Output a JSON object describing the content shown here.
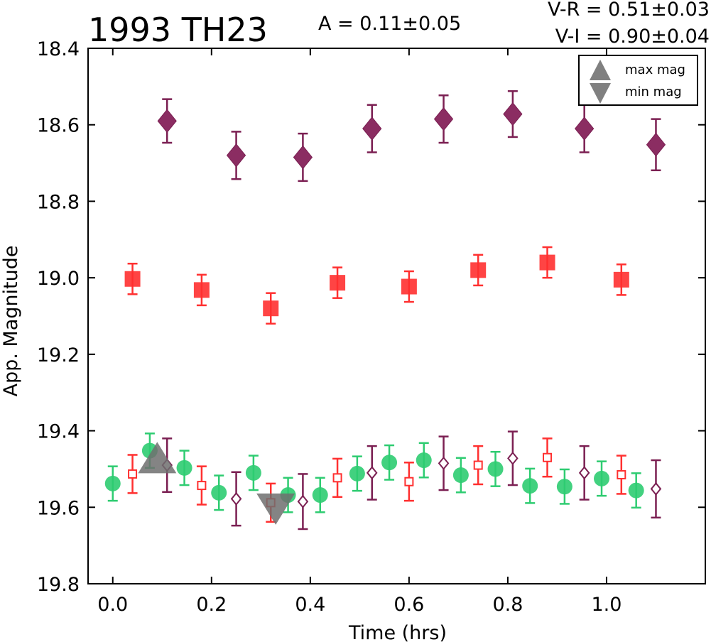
{
  "title": "1993 TH23",
  "annotations": {
    "amplitude": "A  = 0.11±0.05",
    "v_r": "V-R = 0.51±0.03",
    "v_i": "V-I  = 0.90±0.04"
  },
  "colors": {
    "green": "#2ecc71",
    "red": "#ff3030",
    "purple": "#7b1f52",
    "purple_fill": "#8b2d62",
    "marker_gray": "#6e6e6e"
  },
  "chart_data": {
    "type": "scatter",
    "xlabel": "Time (hrs)",
    "ylabel": "App. Magnitude",
    "xlim": [
      -0.05,
      1.2
    ],
    "ylim": [
      19.8,
      18.4
    ],
    "y_inverted": true,
    "grid": false,
    "legend_position": "top-right",
    "x_ticks": [
      "0.0",
      "0.2",
      "0.4",
      "0.6",
      "0.8",
      "1.0"
    ],
    "x_tick_values": [
      0.0,
      0.2,
      0.4,
      0.6,
      0.8,
      1.0
    ],
    "y_ticks": [
      "18.4",
      "18.6",
      "18.8",
      "19.0",
      "19.2",
      "19.4",
      "19.6",
      "19.8"
    ],
    "y_tick_values": [
      18.4,
      18.6,
      18.8,
      19.0,
      19.2,
      19.4,
      19.6,
      19.8
    ],
    "legend": [
      {
        "label": "max mag",
        "marker": "triangle-up"
      },
      {
        "label": "min mag",
        "marker": "triangle-down"
      }
    ],
    "series": [
      {
        "marker": "diamond-filled",
        "color": "purple",
        "x": [
          0.11,
          0.25,
          0.385,
          0.525,
          0.67,
          0.81,
          0.955,
          1.1
        ],
        "y": [
          18.59,
          18.68,
          18.685,
          18.61,
          18.585,
          18.572,
          18.61,
          18.652
        ],
        "err": [
          0.057,
          0.062,
          0.062,
          0.062,
          0.062,
          0.06,
          0.062,
          0.067
        ]
      },
      {
        "marker": "square-filled",
        "color": "red",
        "x": [
          0.04,
          0.18,
          0.32,
          0.455,
          0.6,
          0.74,
          0.88,
          1.03
        ],
        "y": [
          19.003,
          19.032,
          19.08,
          19.013,
          19.023,
          18.98,
          18.96,
          19.005
        ],
        "err": [
          0.04,
          0.04,
          0.04,
          0.04,
          0.04,
          0.04,
          0.04,
          0.04
        ]
      },
      {
        "marker": "circle",
        "color": "green",
        "x": [
          0.0,
          0.075,
          0.145,
          0.215,
          0.285,
          0.355,
          0.42,
          0.495,
          0.56,
          0.63,
          0.705,
          0.775,
          0.845,
          0.915,
          0.99,
          1.06
        ],
        "y": [
          19.538,
          19.452,
          19.497,
          19.562,
          19.51,
          19.568,
          19.568,
          19.512,
          19.483,
          19.477,
          19.516,
          19.5,
          19.544,
          19.546,
          19.525,
          19.556
        ],
        "err": [
          0.045,
          0.045,
          0.045,
          0.045,
          0.045,
          0.045,
          0.045,
          0.045,
          0.045,
          0.045,
          0.045,
          0.045,
          0.045,
          0.045,
          0.045,
          0.045
        ]
      },
      {
        "marker": "square-open",
        "color": "red",
        "x": [
          0.04,
          0.18,
          0.32,
          0.455,
          0.6,
          0.74,
          0.88,
          1.03
        ],
        "y": [
          19.513,
          19.543,
          19.588,
          19.523,
          19.533,
          19.49,
          19.47,
          19.515
        ],
        "err": [
          0.05,
          0.05,
          0.05,
          0.05,
          0.05,
          0.05,
          0.05,
          0.05
        ]
      },
      {
        "marker": "diamond-open",
        "color": "purple",
        "x": [
          0.11,
          0.25,
          0.385,
          0.525,
          0.67,
          0.81,
          0.955,
          1.1
        ],
        "y": [
          19.49,
          19.578,
          19.585,
          19.51,
          19.485,
          19.472,
          19.51,
          19.552
        ],
        "err": [
          0.07,
          0.07,
          0.072,
          0.07,
          0.07,
          0.07,
          0.07,
          0.075
        ]
      },
      {
        "marker": "triangle-up",
        "color": "marker_gray",
        "x": [
          0.09
        ],
        "y": [
          19.485
        ],
        "err": []
      },
      {
        "marker": "triangle-down",
        "color": "marker_gray",
        "x": [
          0.33
        ],
        "y": [
          19.59
        ],
        "err": []
      }
    ]
  }
}
